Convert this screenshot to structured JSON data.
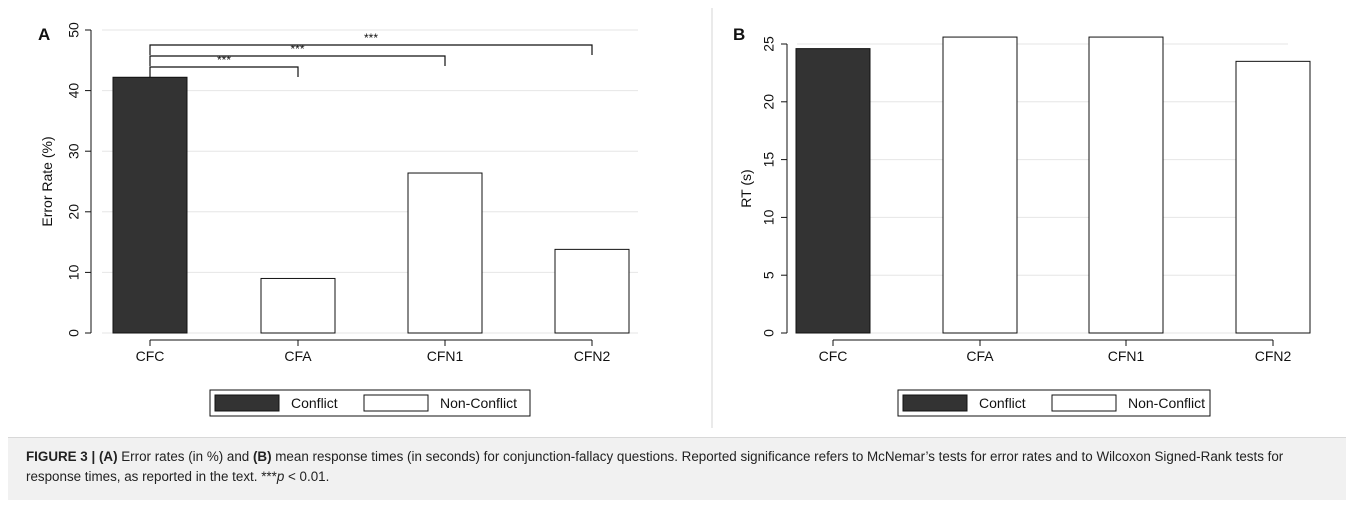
{
  "chart_data": [
    {
      "panel": "A",
      "type": "bar",
      "categories": [
        "CFC",
        "CFA",
        "CFN1",
        "CFN2"
      ],
      "values": [
        42.2,
        9.0,
        26.4,
        13.8
      ],
      "bar_groups": [
        "Conflict",
        "Non-Conflict",
        "Non-Conflict",
        "Non-Conflict"
      ],
      "ylabel": "Error Rate (%)",
      "xlabel": "",
      "ylim": [
        0,
        50
      ],
      "yticks": [
        0,
        10,
        20,
        30,
        40,
        50
      ],
      "grid": true,
      "legend": {
        "placement": "bottom",
        "entries": [
          "Conflict",
          "Non-Conflict"
        ]
      },
      "significance": [
        {
          "from": "CFC",
          "to": "CFA",
          "label": "***"
        },
        {
          "from": "CFC",
          "to": "CFN1",
          "label": "***"
        },
        {
          "from": "CFC",
          "to": "CFN2",
          "label": "***"
        }
      ]
    },
    {
      "panel": "B",
      "type": "bar",
      "categories": [
        "CFC",
        "CFA",
        "CFN1",
        "CFN2"
      ],
      "values": [
        24.6,
        25.6,
        25.6,
        23.5
      ],
      "bar_groups": [
        "Conflict",
        "Non-Conflict",
        "Non-Conflict",
        "Non-Conflict"
      ],
      "ylabel": "RT (s)",
      "xlabel": "",
      "ylim": [
        0,
        25
      ],
      "yticks": [
        0,
        5,
        10,
        15,
        20,
        25
      ],
      "grid": true,
      "legend": {
        "placement": "bottom",
        "entries": [
          "Conflict",
          "Non-Conflict"
        ]
      }
    }
  ],
  "colors": {
    "conflict": "#333333",
    "non_conflict": "#ffffff",
    "grid": "#e6e6e6",
    "caption_bg": "#f1f1f1"
  },
  "caption": {
    "label": "FIGURE 3 | (A)",
    "text1": " Error rates (in %) and ",
    "label_b": "(B)",
    "text2": " mean response times (in seconds) for conjunction-fallacy questions. Reported significance refers to McNemar’s tests for error rates and to Wilcoxon Signed-Rank tests for response times, as reported in the text. ***",
    "p_symbol": "p",
    "text3": " < 0.01."
  }
}
